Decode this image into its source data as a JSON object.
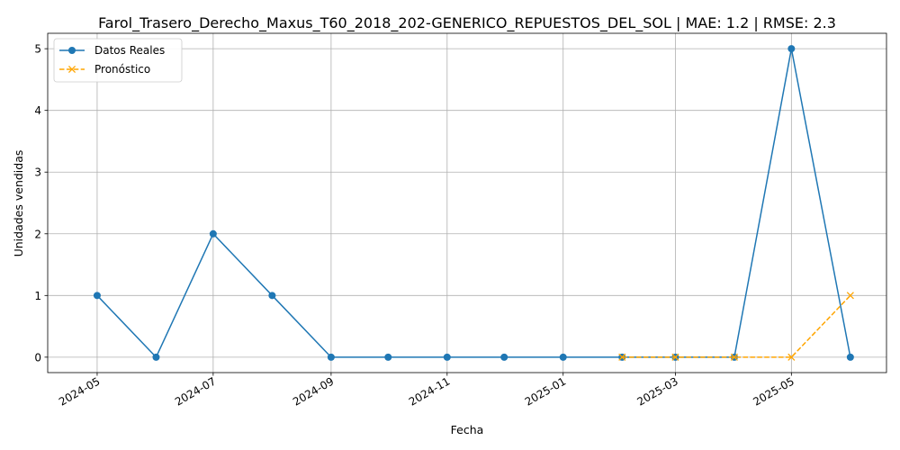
{
  "chart_data": {
    "type": "line",
    "title": "Farol_Trasero_Derecho_Maxus_T60_2018_202-GENERICO_REPUESTOS_DEL_SOL | MAE: 1.2 | RMSE: 2.3",
    "xlabel": "Fecha",
    "ylabel": "Unidades vendidas",
    "x_ticks": [
      "2024-05",
      "2024-07",
      "2024-09",
      "2024-11",
      "2025-01",
      "2025-03",
      "2025-05"
    ],
    "x_ticks_dates": [
      "2024-05-01",
      "2024-07-01",
      "2024-09-01",
      "2024-11-01",
      "2025-01-01",
      "2025-03-01",
      "2025-05-01"
    ],
    "y_ticks": [
      0,
      1,
      2,
      3,
      4,
      5
    ],
    "xlim": [
      "2024-04-05",
      "2025-06-20"
    ],
    "ylim": [
      -0.25,
      5.25
    ],
    "grid": true,
    "legend_position": "top-left",
    "series": [
      {
        "name": "Datos Reales",
        "color": "#1f77b4",
        "style": "solid",
        "marker": "circle",
        "x": [
          "2024-05-01",
          "2024-06-01",
          "2024-07-01",
          "2024-08-01",
          "2024-09-01",
          "2024-10-01",
          "2024-11-01",
          "2024-12-01",
          "2025-01-01",
          "2025-02-01",
          "2025-03-01",
          "2025-04-01",
          "2025-05-01",
          "2025-06-01"
        ],
        "y": [
          1,
          0,
          2,
          1,
          0,
          0,
          0,
          0,
          0,
          0,
          0,
          0,
          5,
          0
        ]
      },
      {
        "name": "Pronóstico",
        "color": "#ffa500",
        "style": "dashed",
        "marker": "x",
        "x": [
          "2025-02-01",
          "2025-03-01",
          "2025-04-01",
          "2025-05-01",
          "2025-06-01"
        ],
        "y": [
          0,
          0,
          0,
          0,
          1
        ]
      }
    ]
  }
}
